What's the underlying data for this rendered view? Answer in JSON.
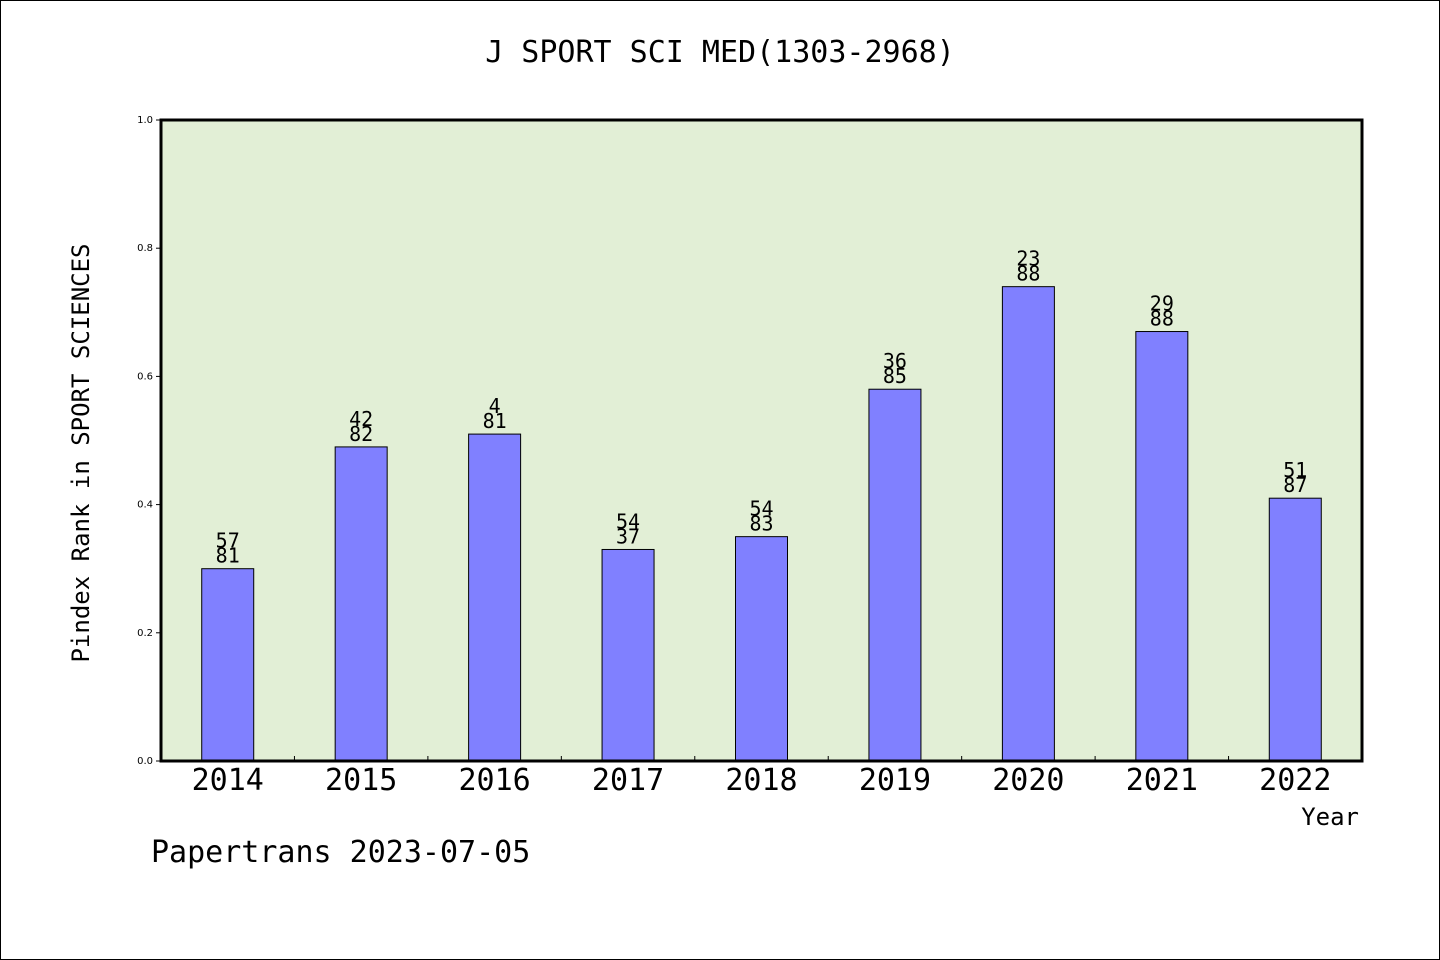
{
  "chart_data": {
    "type": "bar",
    "title": "J SPORT SCI MED(1303-2968)",
    "xlabel": "Year",
    "ylabel": "Pindex Rank in SPORT SCIENCES",
    "categories": [
      "2014",
      "2015",
      "2016",
      "2017",
      "2018",
      "2019",
      "2020",
      "2021",
      "2022"
    ],
    "values": [
      0.3,
      0.49,
      0.51,
      0.33,
      0.35,
      0.58,
      0.74,
      0.67,
      0.41
    ],
    "rank_labels": [
      "57",
      "42",
      "4",
      "54",
      "54",
      "36",
      "23",
      "29",
      "51"
    ],
    "total_labels": [
      "81",
      "82",
      "81",
      "37",
      "83",
      "85",
      "88",
      "88",
      "87"
    ],
    "ylim": [
      0,
      1.0
    ],
    "yticks": [
      "0.0",
      "0.2",
      "0.4",
      "0.6",
      "0.8",
      "1.0"
    ],
    "grid": false,
    "legend": "none"
  },
  "colors": {
    "plot_background": "#e2efd6",
    "bar_fill": "#8080ff",
    "bar_stroke": "#000000",
    "axis": "#000000"
  },
  "footer": {
    "note": "Papertrans 2023-07-05"
  }
}
